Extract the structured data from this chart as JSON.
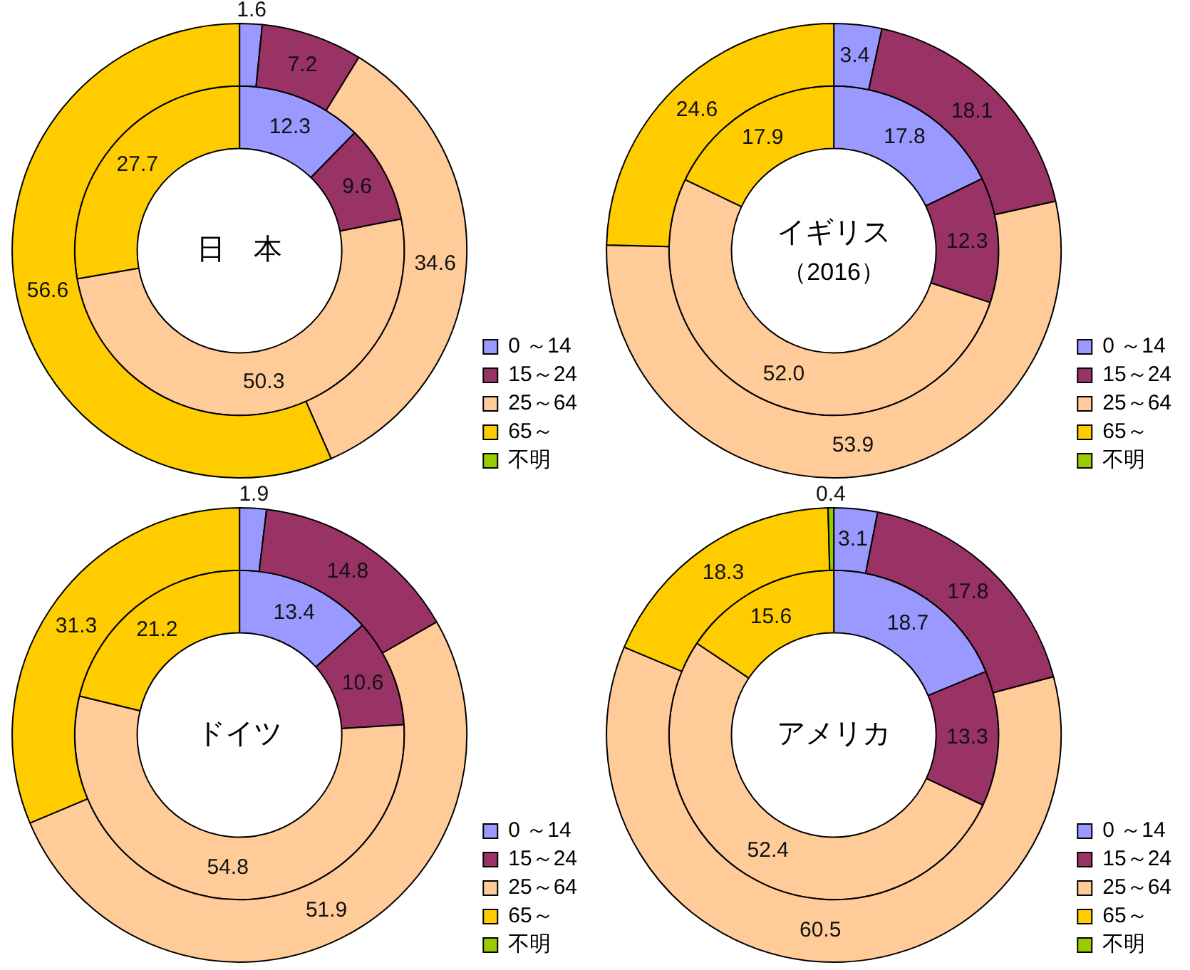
{
  "chart_data": [
    {
      "type": "donut",
      "title": "日　本",
      "categories": [
        "0 ～14",
        "15～24",
        "25～64",
        "65～",
        "不明"
      ],
      "colors": [
        "#9999ff",
        "#993366",
        "#ffcc99",
        "#ffcc00",
        "#99cc00"
      ],
      "legend": "bottom right",
      "data_labels": true,
      "series": [
        {
          "values": [
            1.6,
            7.2,
            34.6,
            56.6,
            null
          ]
        },
        {
          "values": [
            12.3,
            9.6,
            50.3,
            27.7,
            null
          ]
        }
      ]
    },
    {
      "type": "donut",
      "title": "イギリス",
      "subtitle": "（2016）",
      "categories": [
        "0 ～14",
        "15～24",
        "25～64",
        "65～",
        "不明"
      ],
      "colors": [
        "#9999ff",
        "#993366",
        "#ffcc99",
        "#ffcc00",
        "#99cc00"
      ],
      "legend": "bottom right",
      "data_labels": true,
      "series": [
        {
          "values": [
            3.4,
            18.1,
            53.9,
            24.6,
            null
          ]
        },
        {
          "values": [
            17.8,
            12.3,
            52.0,
            17.9,
            null
          ],
          "value_labels": [
            "17.8",
            "12.3",
            "52.0",
            "17.9",
            null
          ]
        }
      ]
    },
    {
      "type": "donut",
      "title": "ドイツ",
      "categories": [
        "0 ～14",
        "15～24",
        "25～64",
        "65～",
        "不明"
      ],
      "colors": [
        "#9999ff",
        "#993366",
        "#ffcc99",
        "#ffcc00",
        "#99cc00"
      ],
      "legend": "bottom right",
      "data_labels": true,
      "series": [
        {
          "values": [
            1.9,
            14.8,
            51.9,
            31.3,
            null
          ]
        },
        {
          "values": [
            13.4,
            10.6,
            54.8,
            21.2,
            null
          ]
        }
      ]
    },
    {
      "type": "donut",
      "title": "アメリカ",
      "categories": [
        "0 ～14",
        "15～24",
        "25～64",
        "65～",
        "不明"
      ],
      "colors": [
        "#9999ff",
        "#993366",
        "#ffcc99",
        "#ffcc00",
        "#99cc00"
      ],
      "legend": "bottom right",
      "data_labels": true,
      "series": [
        {
          "values": [
            3.1,
            17.8,
            60.5,
            18.3,
            0.4
          ]
        },
        {
          "values": [
            18.7,
            13.3,
            52.4,
            15.6,
            null
          ]
        }
      ]
    }
  ]
}
